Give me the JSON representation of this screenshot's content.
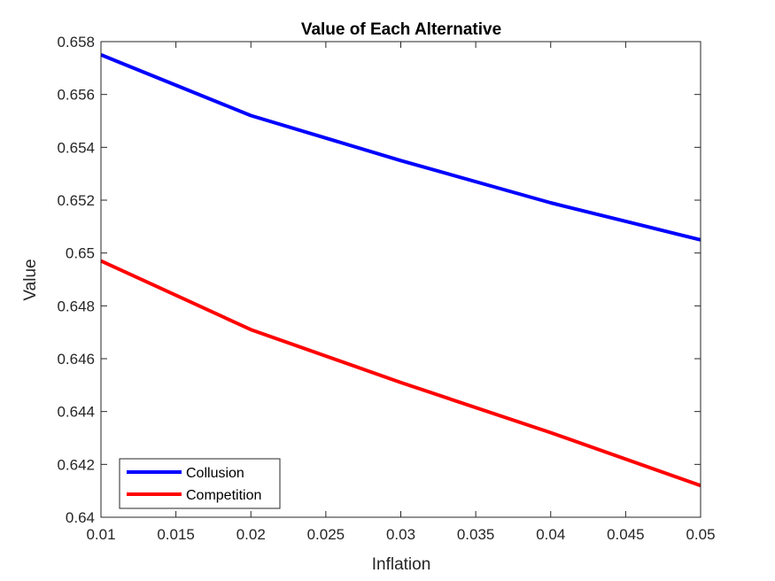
{
  "chart_data": {
    "type": "line",
    "title": "Value of Each Alternative",
    "xlabel": "Inflation",
    "ylabel": "Value",
    "xlim": [
      0.01,
      0.05
    ],
    "ylim": [
      0.64,
      0.658
    ],
    "xticks": [
      0.01,
      0.015,
      0.02,
      0.025,
      0.03,
      0.035,
      0.04,
      0.045,
      0.05
    ],
    "xtick_labels": [
      "0.01",
      "0.015",
      "0.02",
      "0.025",
      "0.03",
      "0.035",
      "0.04",
      "0.045",
      "0.05"
    ],
    "yticks": [
      0.64,
      0.642,
      0.644,
      0.646,
      0.648,
      0.65,
      0.652,
      0.654,
      0.656,
      0.658
    ],
    "ytick_labels": [
      "0.64",
      "0.642",
      "0.644",
      "0.646",
      "0.648",
      "0.65",
      "0.652",
      "0.654",
      "0.656",
      "0.658"
    ],
    "x": [
      0.01,
      0.02,
      0.03,
      0.04,
      0.05
    ],
    "series": [
      {
        "name": "Collusion",
        "color": "#0000ff",
        "values": [
          0.6575,
          0.6552,
          0.6535,
          0.6519,
          0.6505
        ]
      },
      {
        "name": "Competition",
        "color": "#ff0000",
        "values": [
          0.6497,
          0.6471,
          0.6451,
          0.6432,
          0.6412
        ]
      }
    ],
    "grid": false,
    "legend_position": "bottom-left"
  }
}
